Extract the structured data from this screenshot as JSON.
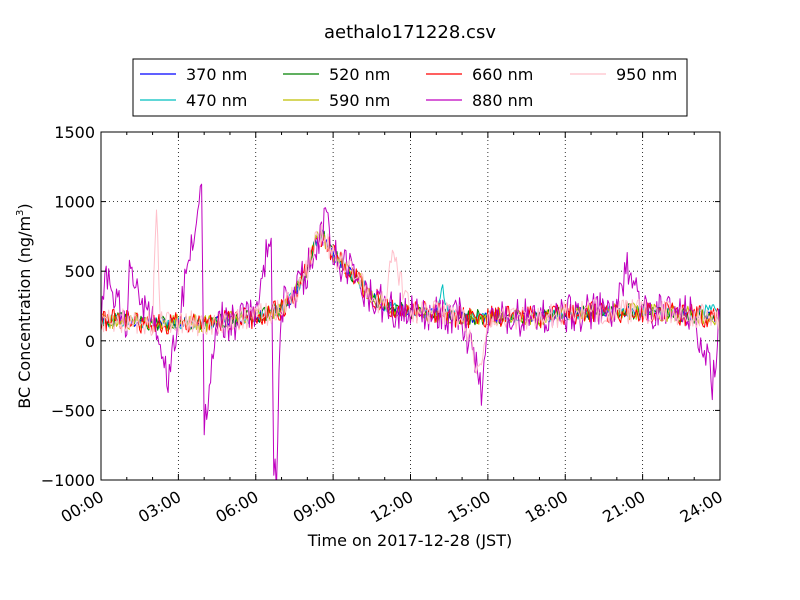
{
  "chart_data": {
    "type": "line",
    "title": "aethalo171228.csv",
    "xlabel": "Time on 2017-12-28 (JST)",
    "ylabel": "BC Concentration (ng/m³)",
    "ylabel_main": "BC Concentration (ng/m",
    "ylabel_sup": "3",
    "ylabel_end": ")",
    "xlim_hours": [
      0,
      24
    ],
    "ylim": [
      -1000,
      1500
    ],
    "yticks": [
      -1000,
      -500,
      0,
      500,
      1000,
      1500
    ],
    "ytick_labels": [
      "−1000",
      "−500",
      "0",
      "500",
      "1000",
      "1500"
    ],
    "xticks_hours": [
      0,
      3,
      6,
      9,
      12,
      15,
      18,
      21,
      24
    ],
    "xtick_labels": [
      "00:00",
      "03:00",
      "06:00",
      "09:00",
      "12:00",
      "15:00",
      "18:00",
      "21:00",
      "24:00"
    ],
    "grid": true,
    "legend_placement": "top-center",
    "series": [
      {
        "name": "370 nm",
        "color": "#0000ff",
        "key": [
          [
            0.0,
            130
          ],
          [
            1.0,
            150
          ],
          [
            2.0,
            120
          ],
          [
            3.0,
            130
          ],
          [
            4.0,
            120
          ],
          [
            5.0,
            150
          ],
          [
            6.0,
            170
          ],
          [
            7.0,
            230
          ],
          [
            7.5,
            330
          ],
          [
            8.0,
            520
          ],
          [
            8.3,
            700
          ],
          [
            8.6,
            760
          ],
          [
            9.0,
            620
          ],
          [
            9.5,
            520
          ],
          [
            10.0,
            430
          ],
          [
            10.5,
            320
          ],
          [
            11.0,
            250
          ],
          [
            12.0,
            210
          ],
          [
            13.0,
            200
          ],
          [
            14.0,
            170
          ],
          [
            15.0,
            170
          ],
          [
            16.0,
            170
          ],
          [
            17.0,
            170
          ],
          [
            18.0,
            190
          ],
          [
            19.0,
            210
          ],
          [
            20.0,
            210
          ],
          [
            21.0,
            210
          ],
          [
            22.0,
            200
          ],
          [
            23.0,
            180
          ],
          [
            24.0,
            170
          ]
        ],
        "amp": 40
      },
      {
        "name": "470 nm",
        "color": "#00bfbf",
        "key": [
          [
            0.0,
            140
          ],
          [
            1.0,
            150
          ],
          [
            2.0,
            120
          ],
          [
            3.0,
            130
          ],
          [
            4.0,
            120
          ],
          [
            5.0,
            150
          ],
          [
            6.0,
            170
          ],
          [
            7.0,
            230
          ],
          [
            7.5,
            330
          ],
          [
            8.0,
            520
          ],
          [
            8.3,
            700
          ],
          [
            8.6,
            760
          ],
          [
            9.0,
            620
          ],
          [
            9.5,
            520
          ],
          [
            10.0,
            430
          ],
          [
            10.5,
            320
          ],
          [
            11.0,
            250
          ],
          [
            12.0,
            210
          ],
          [
            13.0,
            200
          ],
          [
            13.2,
            400
          ],
          [
            13.5,
            200
          ],
          [
            14.0,
            170
          ],
          [
            15.0,
            170
          ],
          [
            16.0,
            170
          ],
          [
            17.0,
            170
          ],
          [
            18.0,
            190
          ],
          [
            19.0,
            210
          ],
          [
            20.0,
            210
          ],
          [
            21.0,
            210
          ],
          [
            22.0,
            200
          ],
          [
            23.0,
            180
          ],
          [
            23.7,
            260
          ],
          [
            24.0,
            170
          ]
        ],
        "amp": 45
      },
      {
        "name": "520 nm",
        "color": "#008000",
        "key": [
          [
            0.0,
            140
          ],
          [
            1.0,
            150
          ],
          [
            2.0,
            120
          ],
          [
            3.0,
            130
          ],
          [
            4.0,
            120
          ],
          [
            5.0,
            150
          ],
          [
            6.0,
            170
          ],
          [
            7.0,
            230
          ],
          [
            7.5,
            330
          ],
          [
            8.0,
            520
          ],
          [
            8.3,
            700
          ],
          [
            8.6,
            760
          ],
          [
            9.0,
            620
          ],
          [
            9.5,
            520
          ],
          [
            10.0,
            430
          ],
          [
            10.5,
            320
          ],
          [
            11.0,
            250
          ],
          [
            12.0,
            210
          ],
          [
            13.0,
            200
          ],
          [
            14.0,
            170
          ],
          [
            15.0,
            170
          ],
          [
            16.0,
            170
          ],
          [
            17.0,
            170
          ],
          [
            18.0,
            190
          ],
          [
            19.0,
            210
          ],
          [
            20.0,
            210
          ],
          [
            21.0,
            210
          ],
          [
            22.0,
            200
          ],
          [
            23.0,
            180
          ],
          [
            24.0,
            170
          ]
        ],
        "amp": 55
      },
      {
        "name": "590 nm",
        "color": "#bfbf00",
        "key": [
          [
            0.0,
            150
          ],
          [
            1.0,
            150
          ],
          [
            2.0,
            120
          ],
          [
            3.0,
            130
          ],
          [
            4.0,
            120
          ],
          [
            5.0,
            150
          ],
          [
            6.0,
            170
          ],
          [
            7.0,
            230
          ],
          [
            7.5,
            330
          ],
          [
            8.0,
            520
          ],
          [
            8.3,
            700
          ],
          [
            8.6,
            760
          ],
          [
            9.0,
            620
          ],
          [
            9.5,
            520
          ],
          [
            10.0,
            430
          ],
          [
            10.5,
            320
          ],
          [
            11.0,
            250
          ],
          [
            12.0,
            210
          ],
          [
            13.0,
            200
          ],
          [
            14.0,
            170
          ],
          [
            15.0,
            170
          ],
          [
            16.0,
            170
          ],
          [
            17.0,
            170
          ],
          [
            18.0,
            190
          ],
          [
            19.0,
            210
          ],
          [
            20.0,
            210
          ],
          [
            21.0,
            210
          ],
          [
            22.0,
            200
          ],
          [
            23.0,
            180
          ],
          [
            24.0,
            170
          ]
        ],
        "amp": 65
      },
      {
        "name": "660 nm",
        "color": "#ff0000",
        "key": [
          [
            0.0,
            150
          ],
          [
            1.0,
            150
          ],
          [
            2.0,
            120
          ],
          [
            3.0,
            130
          ],
          [
            4.0,
            120
          ],
          [
            5.0,
            150
          ],
          [
            6.0,
            170
          ],
          [
            7.0,
            230
          ],
          [
            7.5,
            330
          ],
          [
            8.0,
            520
          ],
          [
            8.3,
            700
          ],
          [
            8.6,
            760
          ],
          [
            9.0,
            620
          ],
          [
            9.5,
            520
          ],
          [
            10.0,
            430
          ],
          [
            10.5,
            320
          ],
          [
            11.0,
            250
          ],
          [
            12.0,
            210
          ],
          [
            13.0,
            200
          ],
          [
            14.0,
            170
          ],
          [
            15.0,
            170
          ],
          [
            16.0,
            170
          ],
          [
            17.0,
            170
          ],
          [
            18.0,
            190
          ],
          [
            19.0,
            210
          ],
          [
            20.0,
            210
          ],
          [
            21.0,
            210
          ],
          [
            22.0,
            200
          ],
          [
            23.0,
            180
          ],
          [
            24.0,
            170
          ]
        ],
        "amp": 80
      },
      {
        "name": "880 nm",
        "color": "#bf00bf",
        "key": [
          [
            0.0,
            140
          ],
          [
            0.2,
            420
          ],
          [
            1.0,
            140
          ],
          [
            1.1,
            510
          ],
          [
            2.0,
            110
          ],
          [
            2.6,
            -310
          ],
          [
            3.0,
            150
          ],
          [
            3.9,
            1060
          ],
          [
            4.0,
            -570
          ],
          [
            4.5,
            150
          ],
          [
            5.0,
            130
          ],
          [
            6.0,
            180
          ],
          [
            6.6,
            850
          ],
          [
            6.7,
            -990
          ],
          [
            6.8,
            -960
          ],
          [
            7.0,
            250
          ],
          [
            7.5,
            330
          ],
          [
            8.0,
            520
          ],
          [
            8.3,
            700
          ],
          [
            8.6,
            760
          ],
          [
            8.7,
            1000
          ],
          [
            9.0,
            620
          ],
          [
            9.5,
            520
          ],
          [
            10.0,
            430
          ],
          [
            10.5,
            320
          ],
          [
            11.0,
            250
          ],
          [
            12.0,
            210
          ],
          [
            13.0,
            200
          ],
          [
            14.0,
            170
          ],
          [
            14.8,
            -360
          ],
          [
            15.0,
            170
          ],
          [
            16.0,
            170
          ],
          [
            17.0,
            170
          ],
          [
            18.0,
            190
          ],
          [
            19.0,
            210
          ],
          [
            20.0,
            210
          ],
          [
            20.5,
            580
          ],
          [
            21.0,
            210
          ],
          [
            22.0,
            200
          ],
          [
            23.0,
            180
          ],
          [
            23.7,
            -290
          ],
          [
            24.0,
            170
          ]
        ],
        "amp": 140
      },
      {
        "name": "950 nm",
        "color": "#ffc0cb",
        "key": [
          [
            0.0,
            130
          ],
          [
            1.0,
            150
          ],
          [
            2.0,
            120
          ],
          [
            2.15,
            1000
          ],
          [
            2.3,
            120
          ],
          [
            3.0,
            130
          ],
          [
            4.0,
            120
          ],
          [
            5.0,
            150
          ],
          [
            6.0,
            170
          ],
          [
            7.0,
            230
          ],
          [
            7.5,
            330
          ],
          [
            8.0,
            520
          ],
          [
            8.3,
            700
          ],
          [
            8.6,
            760
          ],
          [
            9.0,
            620
          ],
          [
            9.5,
            520
          ],
          [
            10.0,
            430
          ],
          [
            10.5,
            320
          ],
          [
            11.0,
            250
          ],
          [
            11.3,
            610
          ],
          [
            12.0,
            210
          ],
          [
            13.0,
            200
          ],
          [
            14.0,
            170
          ],
          [
            14.7,
            -240
          ],
          [
            15.0,
            170
          ],
          [
            16.0,
            170
          ],
          [
            17.0,
            170
          ],
          [
            18.0,
            190
          ],
          [
            19.0,
            210
          ],
          [
            20.0,
            210
          ],
          [
            21.0,
            210
          ],
          [
            22.0,
            200
          ],
          [
            23.0,
            180
          ],
          [
            24.0,
            170
          ]
        ],
        "amp": 90
      }
    ]
  }
}
